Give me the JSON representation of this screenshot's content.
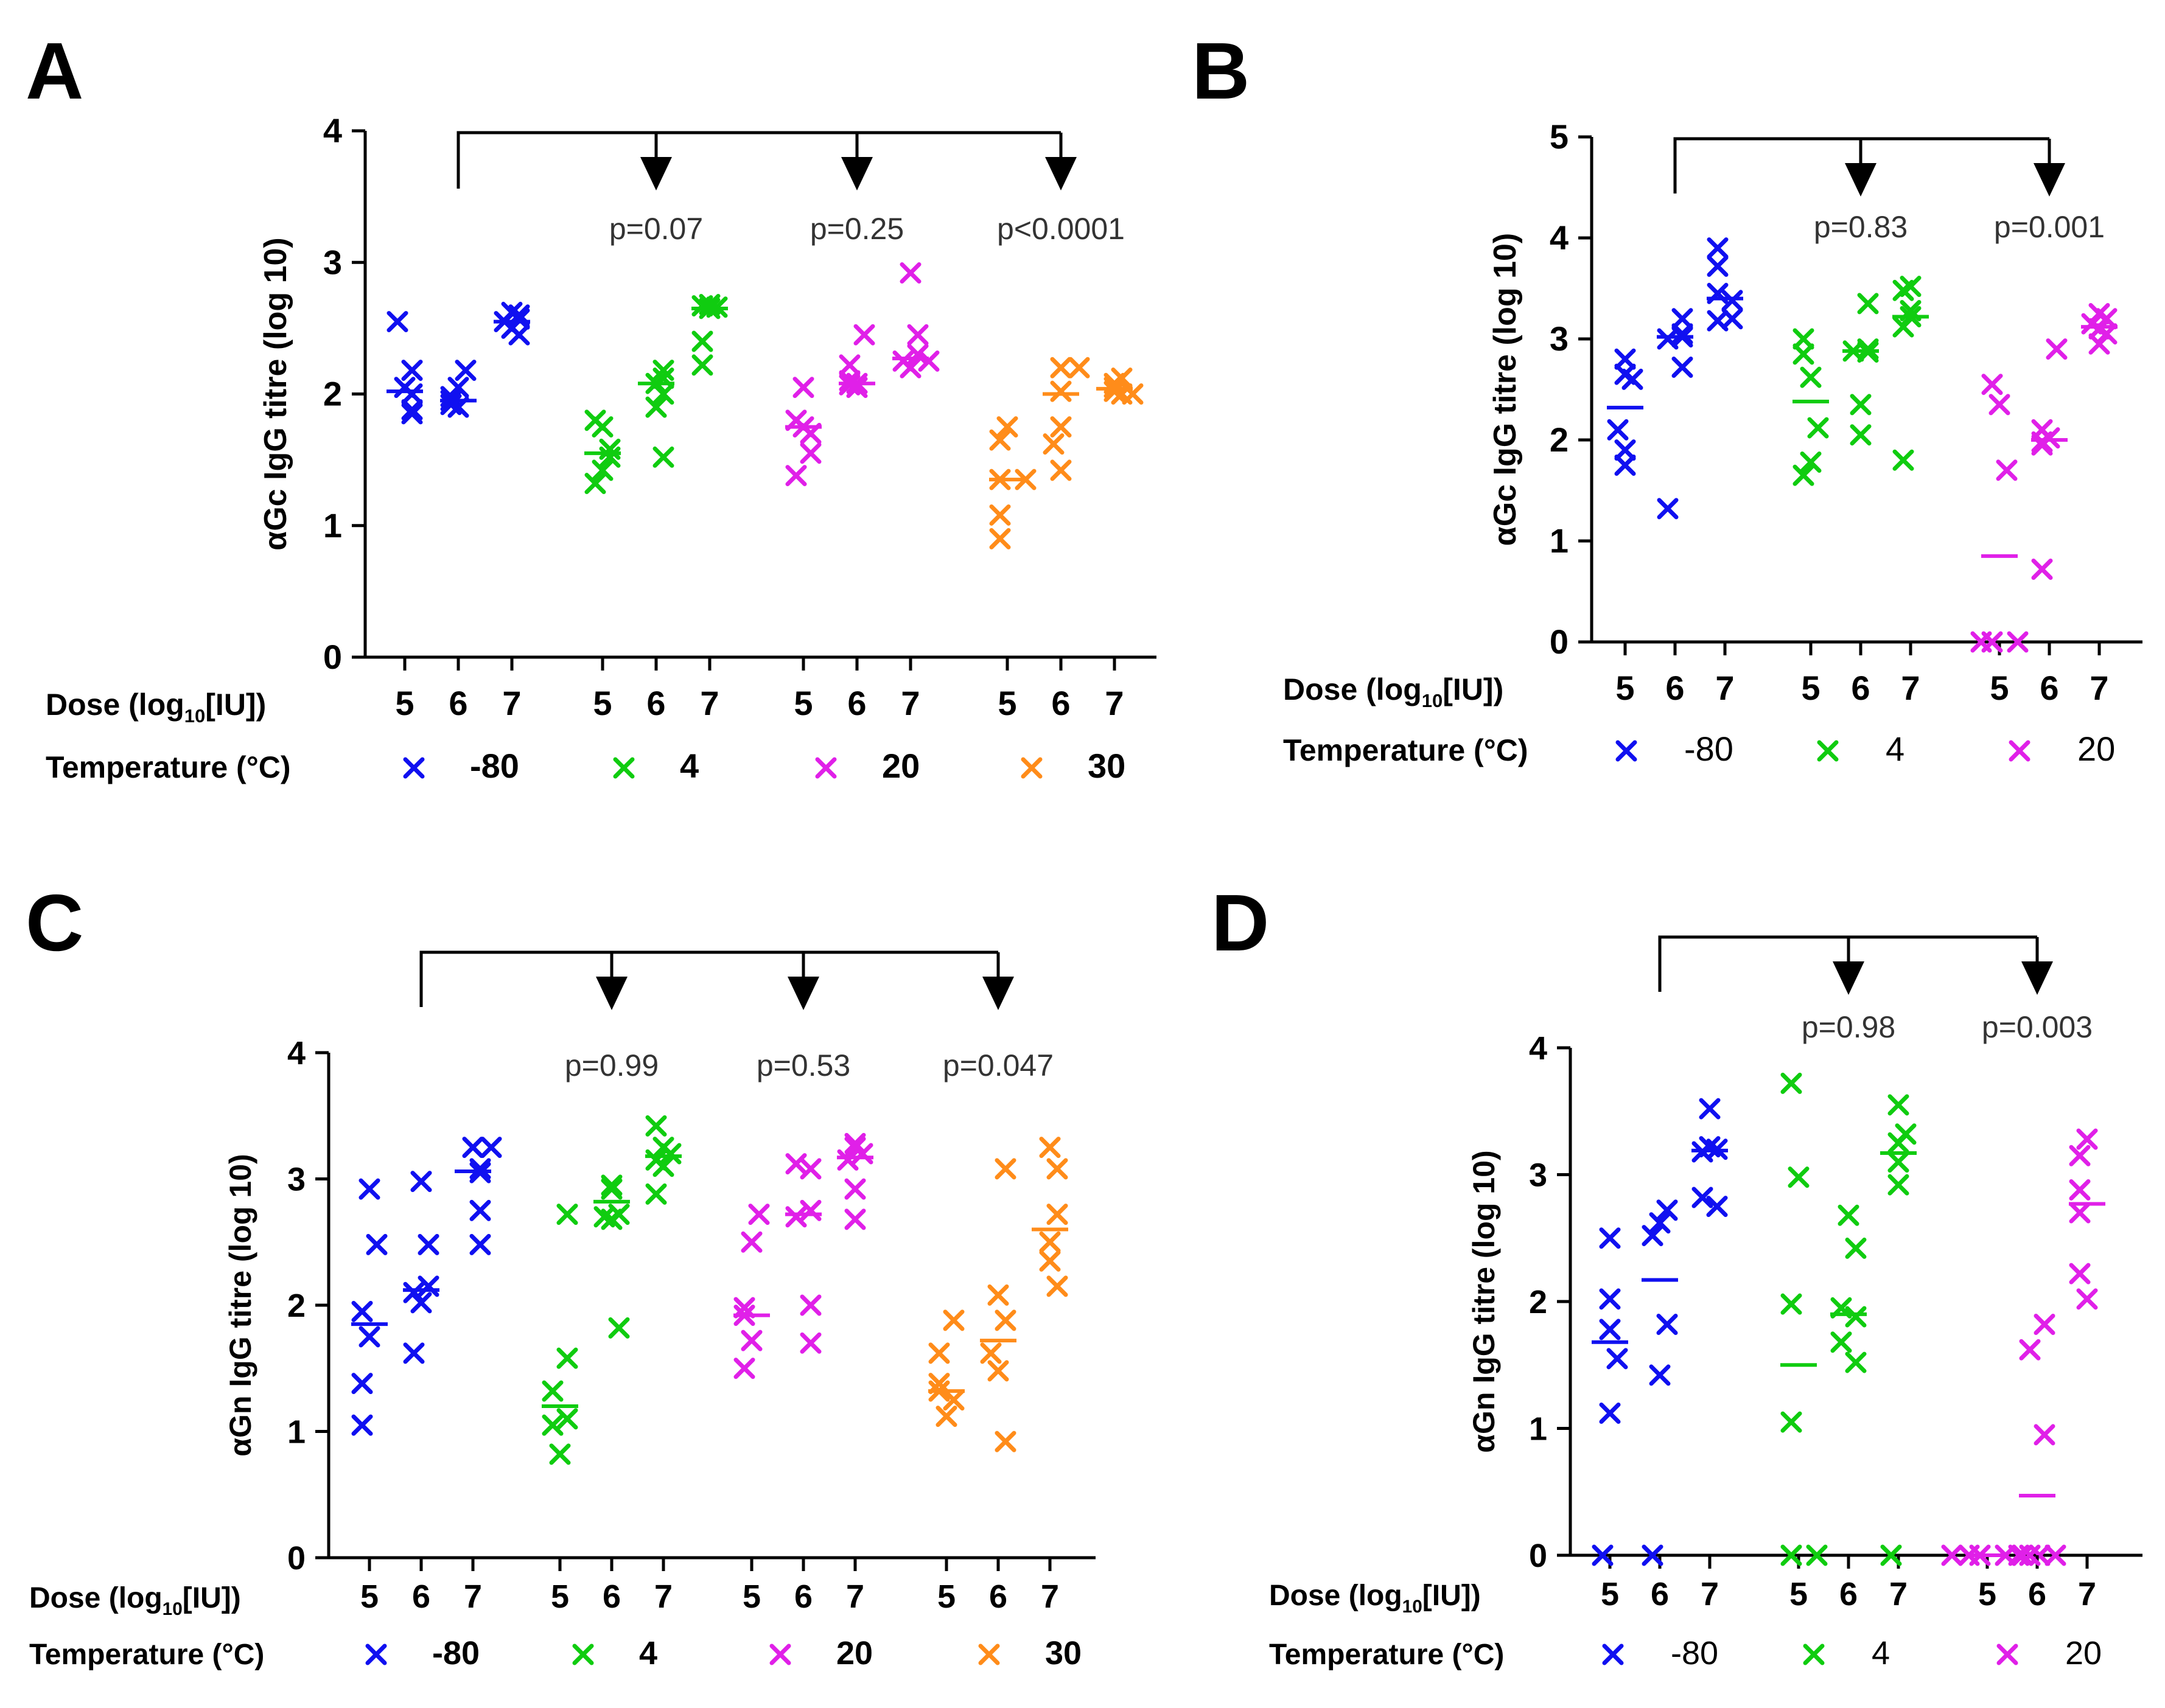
{
  "colors": {
    "-80": "#1010F0",
    "4": "#10CC10",
    "20": "#E020E8",
    "30": "#FF8C1A",
    "axis": "#000000",
    "pval": "#333333"
  },
  "chart_data": [
    {
      "type": "scatter",
      "panel": "A",
      "ylabel": "αGc IgG titre (log 10)",
      "ylim": [
        0,
        4
      ],
      "yticks": [
        "0",
        "1",
        "2",
        "3",
        "4"
      ],
      "dose_label": "Dose (log",
      "dose_sub": "10",
      "dose_label_end": "[IU])",
      "temp_label": "Temperature (°C)",
      "legend_bold": true,
      "legend": [
        "-80",
        "4",
        "20",
        "30"
      ],
      "groups": [
        {
          "temp": "-80",
          "doses": [
            {
              "dose": "5",
              "values": [
                2.55,
                2.18,
                2.05,
                2.0,
                1.88,
                1.85
              ],
              "median": 2.02
            },
            {
              "dose": "6",
              "values": [
                2.18,
                2.05,
                1.98,
                1.95,
                1.92,
                1.9
              ],
              "median": 1.95
            },
            {
              "dose": "7",
              "values": [
                2.62,
                2.6,
                2.57,
                2.55,
                2.5,
                2.45
              ],
              "median": 2.55
            }
          ]
        },
        {
          "temp": "4",
          "doses": [
            {
              "dose": "5",
              "values": [
                1.8,
                1.75,
                1.58,
                1.52,
                1.42,
                1.32
              ],
              "median": 1.55
            },
            {
              "dose": "6",
              "values": [
                2.18,
                2.12,
                2.08,
                2.0,
                1.9,
                1.52
              ],
              "median": 2.08
            },
            {
              "dose": "7",
              "values": [
                2.68,
                2.67,
                2.66,
                2.65,
                2.4,
                2.22
              ],
              "median": 2.65
            }
          ]
        },
        {
          "temp": "20",
          "doses": [
            {
              "dose": "5",
              "values": [
                2.05,
                1.8,
                1.75,
                1.7,
                1.55,
                1.38
              ],
              "median": 1.75
            },
            {
              "dose": "6",
              "values": [
                2.45,
                2.22,
                2.1,
                2.08,
                2.07,
                2.05
              ],
              "median": 2.08
            },
            {
              "dose": "7",
              "values": [
                2.92,
                2.45,
                2.3,
                2.25,
                2.25,
                2.2
              ],
              "median": 2.27
            }
          ]
        },
        {
          "temp": "30",
          "doses": [
            {
              "dose": "5",
              "values": [
                1.75,
                1.65,
                1.35,
                1.35,
                1.08,
                0.9
              ],
              "median": 1.35
            },
            {
              "dose": "6",
              "values": [
                2.2,
                2.2,
                2.02,
                1.75,
                1.62,
                1.42
              ],
              "median": 2.0
            },
            {
              "dose": "7",
              "values": [
                2.12,
                2.08,
                2.05,
                2.02,
                2.0,
                2.0
              ],
              "median": 2.04
            }
          ]
        }
      ],
      "bracket_targets": [
        1,
        2,
        3
      ],
      "pvalues": [
        "p=0.07",
        "p=0.25",
        "p<0.0001"
      ]
    },
    {
      "type": "scatter",
      "panel": "B",
      "ylabel": "αGc IgG titre (log 10)",
      "ylim": [
        0,
        5
      ],
      "yticks": [
        "0",
        "1",
        "2",
        "3",
        "4",
        "5"
      ],
      "dose_label": "Dose (log",
      "dose_sub": "10",
      "dose_label_end": "[IU])",
      "temp_label": "Temperature (°C)",
      "legend_bold": false,
      "legend": [
        "-80",
        "4",
        "20"
      ],
      "groups": [
        {
          "temp": "-80",
          "doses": [
            {
              "dose": "5",
              "values": [
                2.8,
                2.65,
                2.6,
                2.1,
                1.9,
                1.75
              ],
              "median": 2.32
            },
            {
              "dose": "6",
              "values": [
                3.2,
                3.05,
                3.02,
                3.0,
                2.72,
                1.32
              ],
              "median": 3.02
            },
            {
              "dose": "7",
              "values": [
                3.9,
                3.72,
                3.45,
                3.38,
                3.2,
                3.18
              ],
              "median": 3.4
            }
          ]
        },
        {
          "temp": "4",
          "doses": [
            {
              "dose": "5",
              "values": [
                3.0,
                2.85,
                2.62,
                2.12,
                1.78,
                1.65
              ],
              "median": 2.38
            },
            {
              "dose": "6",
              "values": [
                3.35,
                2.9,
                2.88,
                2.87,
                2.35,
                2.05
              ],
              "median": 2.88
            },
            {
              "dose": "7",
              "values": [
                3.52,
                3.48,
                3.28,
                3.22,
                3.12,
                1.8
              ],
              "median": 3.22
            }
          ]
        },
        {
          "temp": "20",
          "doses": [
            {
              "dose": "5",
              "values": [
                2.55,
                2.35,
                1.7,
                0,
                0,
                0
              ],
              "median": 0.85
            },
            {
              "dose": "6",
              "values": [
                2.9,
                2.1,
                2.02,
                1.98,
                1.95,
                0.72
              ],
              "median": 2.0
            },
            {
              "dose": "7",
              "values": [
                3.25,
                3.2,
                3.15,
                3.1,
                3.05,
                2.95
              ],
              "median": 3.12
            }
          ]
        }
      ],
      "bracket_targets": [
        1,
        2
      ],
      "pvalues": [
        "p=0.83",
        "p=0.001"
      ]
    },
    {
      "type": "scatter",
      "panel": "C",
      "ylabel": "αGn IgG titre (log 10)",
      "ylim": [
        0,
        4
      ],
      "yticks": [
        "0",
        "1",
        "2",
        "3",
        "4"
      ],
      "dose_label": "Dose (log",
      "dose_sub": "10",
      "dose_label_end": "[IU])",
      "temp_label": "Temperature (°C)",
      "legend_bold": true,
      "legend": [
        "-80",
        "4",
        "20",
        "30"
      ],
      "groups": [
        {
          "temp": "-80",
          "doses": [
            {
              "dose": "5",
              "values": [
                2.92,
                2.48,
                1.95,
                1.75,
                1.38,
                1.05
              ],
              "median": 1.85
            },
            {
              "dose": "6",
              "values": [
                2.98,
                2.48,
                2.15,
                2.1,
                2.02,
                1.62
              ],
              "median": 2.12
            },
            {
              "dose": "7",
              "values": [
                3.25,
                3.25,
                3.08,
                3.05,
                2.75,
                2.48
              ],
              "median": 3.06
            }
          ]
        },
        {
          "temp": "4",
          "doses": [
            {
              "dose": "5",
              "values": [
                2.72,
                1.58,
                1.32,
                1.1,
                1.05,
                0.82
              ],
              "median": 1.2
            },
            {
              "dose": "6",
              "values": [
                2.95,
                2.92,
                2.72,
                2.7,
                2.68,
                1.82
              ],
              "median": 2.82
            },
            {
              "dose": "7",
              "values": [
                3.42,
                3.25,
                3.2,
                3.15,
                3.1,
                2.88
              ],
              "median": 3.18
            }
          ]
        },
        {
          "temp": "20",
          "doses": [
            {
              "dose": "5",
              "values": [
                2.72,
                2.5,
                1.98,
                1.92,
                1.72,
                1.5
              ],
              "median": 1.92
            },
            {
              "dose": "6",
              "values": [
                3.12,
                3.08,
                2.75,
                2.7,
                2.0,
                1.7
              ],
              "median": 2.72
            },
            {
              "dose": "7",
              "values": [
                3.28,
                3.25,
                3.2,
                3.15,
                2.92,
                2.68
              ],
              "median": 3.17
            }
          ]
        },
        {
          "temp": "30",
          "doses": [
            {
              "dose": "5",
              "values": [
                1.88,
                1.62,
                1.38,
                1.32,
                1.25,
                1.12
              ],
              "median": 1.32
            },
            {
              "dose": "6",
              "values": [
                3.08,
                2.08,
                1.88,
                1.62,
                1.48,
                0.92
              ],
              "median": 1.72
            },
            {
              "dose": "7",
              "values": [
                3.25,
                3.08,
                2.72,
                2.5,
                2.35,
                2.15
              ],
              "median": 2.6
            }
          ]
        }
      ],
      "bracket_targets": [
        1,
        2,
        3
      ],
      "pvalues": [
        "p=0.99",
        "p=0.53",
        "p=0.047"
      ]
    },
    {
      "type": "scatter",
      "panel": "D",
      "ylabel": "αGn IgG titre (log 10)",
      "ylim": [
        0,
        4
      ],
      "yticks": [
        "0",
        "1",
        "2",
        "3",
        "4"
      ],
      "dose_label": "Dose (log",
      "dose_sub": "10",
      "dose_label_end": "[IU])",
      "temp_label": "Temperature (°C)",
      "legend_bold": false,
      "legend": [
        "-80",
        "4",
        "20"
      ],
      "groups": [
        {
          "temp": "-80",
          "doses": [
            {
              "dose": "5",
              "values": [
                2.5,
                2.02,
                1.78,
                1.55,
                1.12,
                0
              ],
              "median": 1.68
            },
            {
              "dose": "6",
              "values": [
                2.72,
                2.62,
                2.52,
                1.82,
                1.42,
                0
              ],
              "median": 2.17
            },
            {
              "dose": "7",
              "values": [
                3.52,
                3.22,
                3.2,
                3.18,
                2.82,
                2.75
              ],
              "median": 3.19
            }
          ]
        },
        {
          "temp": "4",
          "doses": [
            {
              "dose": "5",
              "values": [
                3.72,
                2.98,
                1.98,
                1.05,
                0,
                0
              ],
              "median": 1.5
            },
            {
              "dose": "6",
              "values": [
                2.68,
                2.42,
                1.95,
                1.88,
                1.68,
                1.52
              ],
              "median": 1.9
            },
            {
              "dose": "7",
              "values": [
                3.55,
                3.32,
                3.25,
                3.1,
                2.92,
                0
              ],
              "median": 3.17
            }
          ]
        },
        {
          "temp": "20",
          "doses": [
            {
              "dose": "5",
              "values": [
                0,
                0,
                0,
                0,
                0,
                0
              ],
              "median": 0
            },
            {
              "dose": "6",
              "values": [
                1.82,
                1.62,
                0.95,
                0,
                0,
                0
              ],
              "median": 0.47
            },
            {
              "dose": "7",
              "values": [
                3.28,
                3.15,
                2.88,
                2.7,
                2.22,
                2.02
              ],
              "median": 2.77
            }
          ]
        }
      ],
      "bracket_targets": [
        1,
        2
      ],
      "pvalues": [
        "p=0.98",
        "p=0.003"
      ]
    }
  ]
}
